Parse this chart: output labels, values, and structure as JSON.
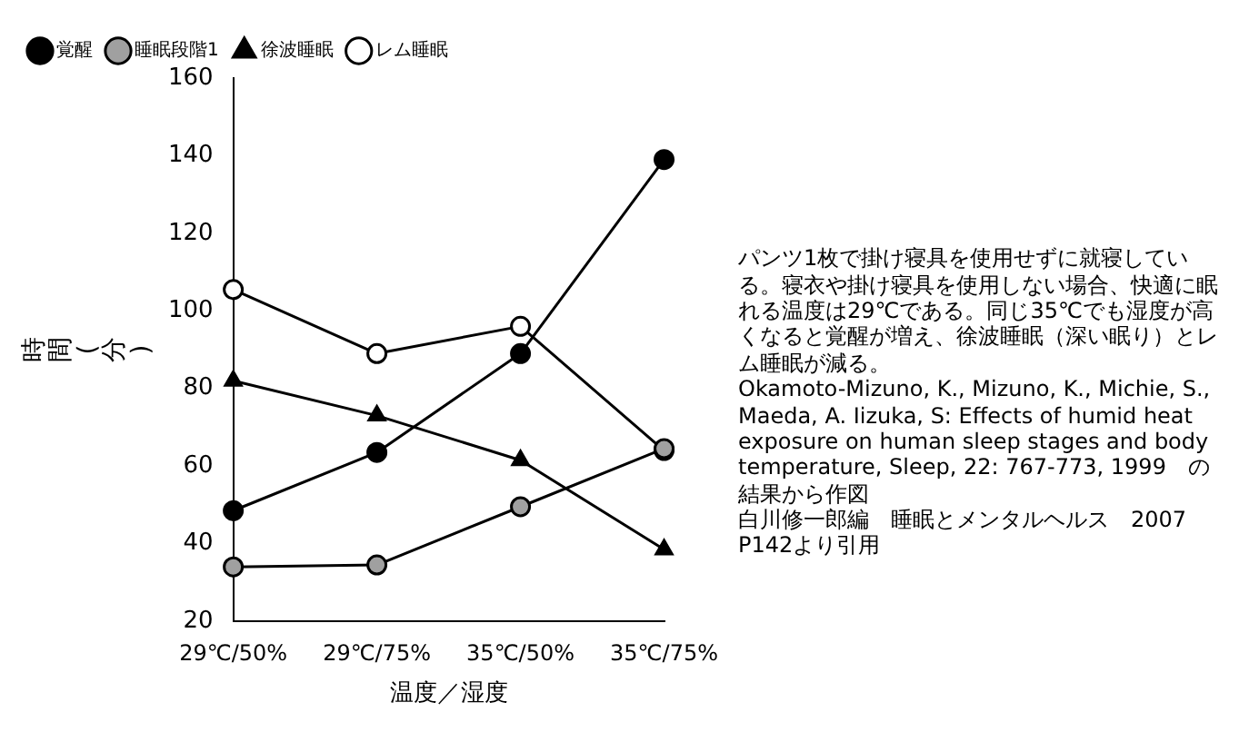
{
  "chart_data": {
    "type": "line",
    "xlabel": "温度／湿度",
    "ylabel": "時間(分)",
    "categories": [
      "29℃/50%",
      "29℃/75%",
      "35℃/50%",
      "35℃/75%"
    ],
    "series": [
      {
        "name": "覚醒",
        "color": "#000000",
        "marker": "circle",
        "values": [
          48.5,
          63.5,
          89,
          139
        ]
      },
      {
        "name": "睡眠段階1",
        "color": "#a0a0a0",
        "marker": "circle",
        "values": [
          34,
          34.5,
          49.5,
          64.5
        ]
      },
      {
        "name": "徐波睡眠",
        "color": "#000000",
        "marker": "triangle",
        "values": [
          82,
          73,
          61.5,
          38.5
        ]
      },
      {
        "name": "レム睡眠",
        "color": "#ffffff",
        "marker": "circle",
        "values": [
          105.5,
          89,
          96,
          64
        ]
      }
    ],
    "ylim": [
      20,
      160
    ],
    "yticks": [
      20,
      40,
      60,
      80,
      100,
      120,
      140,
      160
    ],
    "grid": false,
    "legend": "top left",
    "line_style": "solid",
    "annotations": [
      "パンツ1枚で掛け寝具を使用せずに就寝している。寝衣や掛け寝具を使用しない場合、快適に眠れる温度は29℃である。同じ35℃でも湿度が高くなると覚醒が増え、徐波睡眠（深い眠り）とレム睡眠が減る。",
      "Okamoto-Mizuno, K., Mizuno, K., Michie, S., Maeda, A. Iizuka, S: Effects of humid heat exposure on human sleep stages and body temperature, Sleep, 22: 767-773, 1999　の結果から作図",
      "白川修一郎編　睡眠とメンタルヘルス　2007　P142より引用"
    ]
  }
}
